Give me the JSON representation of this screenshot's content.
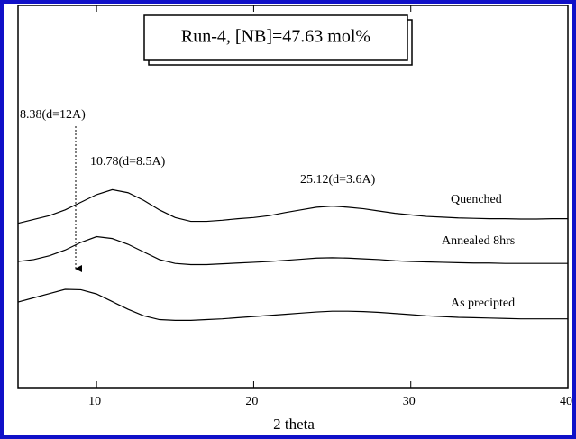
{
  "chart_data": {
    "type": "line",
    "title": "Run-4, [NB]=47.63 mol%",
    "x_label": "2 theta",
    "annotations": [
      "8.38(d=12A)",
      "10.78(d=8.5A)",
      "25.12(d=3.6A)"
    ],
    "x": [
      5,
      6,
      7,
      8,
      9,
      10,
      11,
      12,
      13,
      14,
      15,
      16,
      17,
      18,
      19,
      20,
      21,
      22,
      23,
      24,
      25,
      26,
      27,
      28,
      29,
      30,
      31,
      32,
      33,
      34,
      35,
      36,
      37,
      38,
      39,
      40
    ],
    "xlim": [
      5,
      40
    ],
    "xticks": [
      10,
      20,
      30,
      40
    ],
    "ylim": [
      0,
      100
    ],
    "series": [
      {
        "name": "Quenched",
        "color": "#000000",
        "values": [
          43,
          44,
          45,
          46.5,
          48.5,
          50.5,
          51.8,
          51,
          49,
          46.5,
          44.5,
          43.5,
          43.5,
          43.8,
          44.2,
          44.5,
          45,
          45.8,
          46.5,
          47.2,
          47.5,
          47.2,
          46.8,
          46.2,
          45.6,
          45.2,
          44.8,
          44.6,
          44.4,
          44.3,
          44.2,
          44.2,
          44.1,
          44.1,
          44.2,
          44.2
        ]
      },
      {
        "name": "Annealed 8hrs",
        "color": "#000000",
        "values": [
          33,
          33.5,
          34.5,
          36,
          38,
          39.5,
          39,
          37.5,
          35.5,
          33.5,
          32.5,
          32.2,
          32.2,
          32.4,
          32.6,
          32.8,
          33,
          33.3,
          33.6,
          33.9,
          34,
          33.9,
          33.7,
          33.5,
          33.2,
          33,
          32.9,
          32.8,
          32.7,
          32.6,
          32.6,
          32.5,
          32.5,
          32.5,
          32.5,
          32.5
        ]
      },
      {
        "name": "As precipted",
        "color": "#000000",
        "values": [
          22.4,
          23.5,
          24.6,
          25.7,
          25.6,
          24.5,
          22.5,
          20.5,
          18.8,
          17.8,
          17.6,
          17.6,
          17.8,
          18,
          18.3,
          18.6,
          18.9,
          19.2,
          19.5,
          19.8,
          20,
          20,
          19.9,
          19.7,
          19.4,
          19.1,
          18.8,
          18.6,
          18.4,
          18.3,
          18.2,
          18.1,
          18,
          18,
          18,
          18
        ]
      }
    ]
  }
}
